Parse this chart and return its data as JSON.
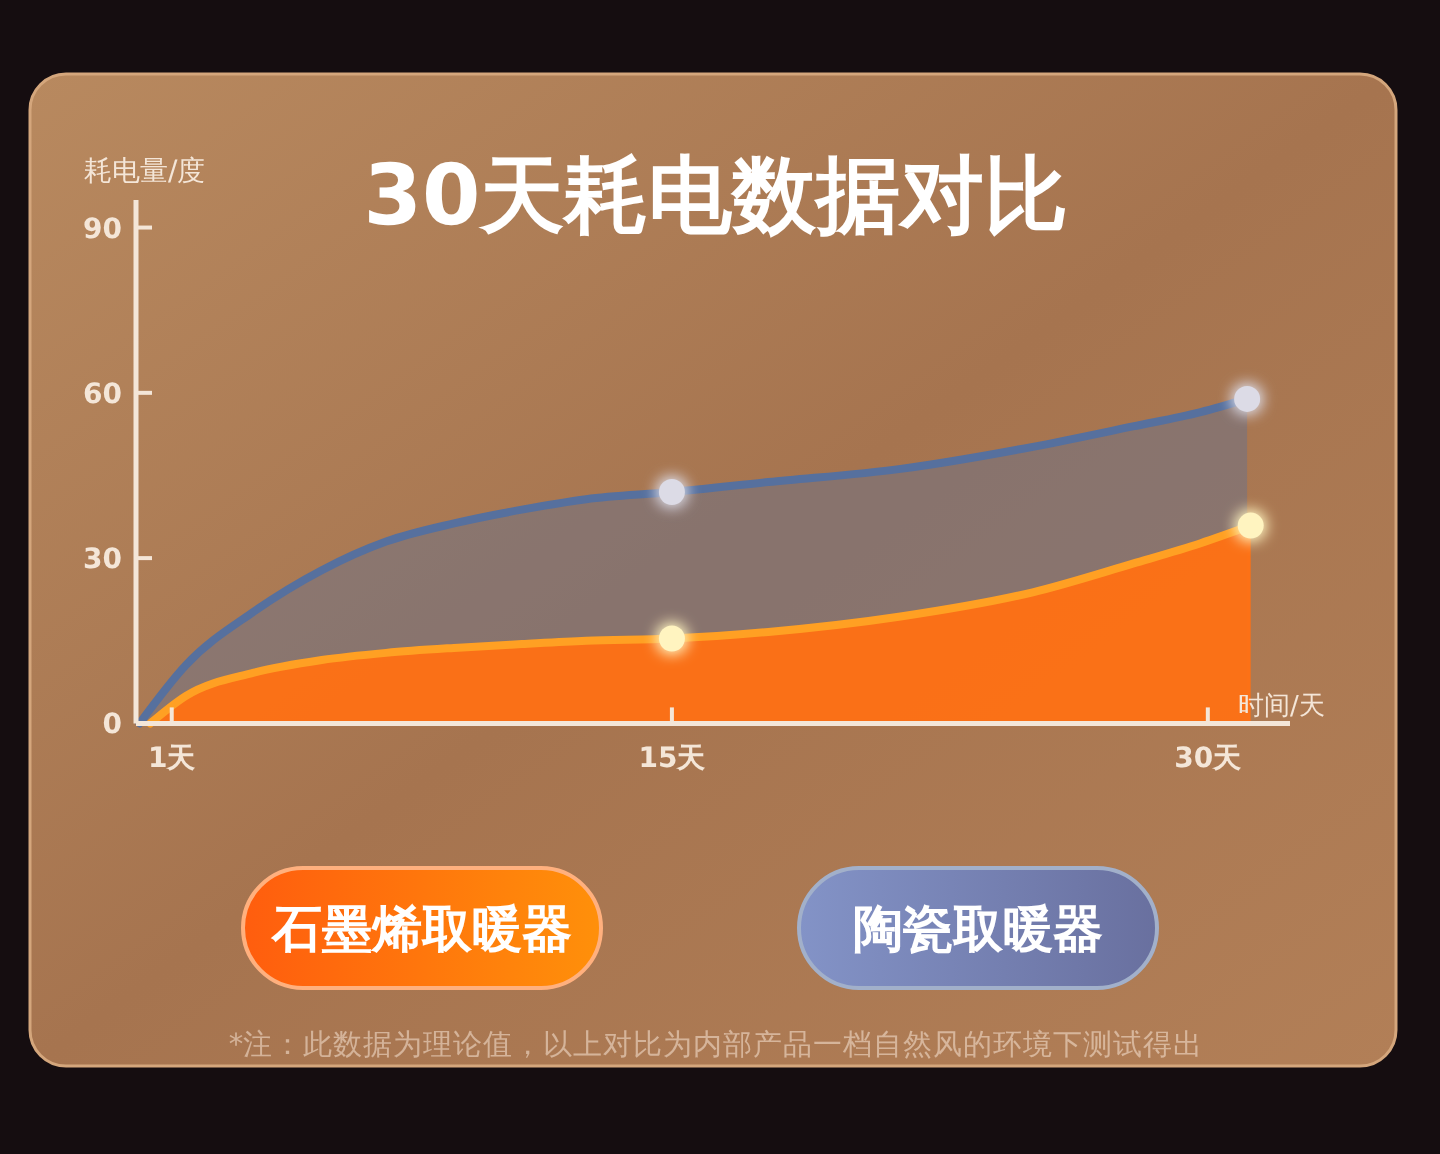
{
  "chart_data": {
    "type": "area",
    "title": "30天耗电数据对比",
    "xlabel": "时间/天",
    "ylabel": "耗电量/度",
    "xlim": [
      0,
      32.3
    ],
    "xticks": [
      {
        "value": 1,
        "label": "1天"
      },
      {
        "value": 15,
        "label": "15天"
      },
      {
        "value": 30,
        "label": "30天"
      }
    ],
    "ylim": [
      0,
      95
    ],
    "yticks": [
      0,
      30,
      60,
      90
    ],
    "series": [
      {
        "name": "石墨烯取暖器",
        "color": "#ff7014",
        "x": [
          0.4,
          1.4,
          3.3,
          5.2,
          7.0,
          8.9,
          10.8,
          12.6,
          15,
          17.7,
          21.4,
          25.1,
          27.9,
          29.8,
          31.2
        ],
        "values": [
          0,
          5.0,
          9.2,
          11.5,
          12.8,
          13.7,
          14.4,
          15.0,
          15.4,
          16.6,
          19.4,
          23.8,
          29.0,
          32.7,
          35.9
        ]
      },
      {
        "name": "陶瓷取暖器",
        "color": "#56709e",
        "x": [
          0.1,
          1.4,
          3.3,
          5.2,
          7.0,
          8.9,
          10.8,
          12.6,
          15,
          17.7,
          21.4,
          25.1,
          27.9,
          29.8,
          31.1
        ],
        "values": [
          0,
          10.6,
          20.3,
          27.8,
          33.0,
          36.3,
          38.8,
          40.7,
          42.0,
          43.8,
          46.2,
          50.2,
          53.9,
          56.5,
          58.9
        ]
      },
      {
        "type": "scatter",
        "color": "#fff4c0",
        "x": [
          15,
          31.2
        ],
        "values": [
          15.4,
          35.9
        ]
      },
      {
        "type": "scatter",
        "color": "#dcdbe6",
        "x": [
          15,
          31.1
        ],
        "values": [
          42.0,
          58.9
        ]
      }
    ],
    "legend": "bottom",
    "grid": false,
    "annotations": [
      "*注：此数据为理论值，以上对比为内部产品一档自然风的环境下测试得出"
    ]
  }
}
